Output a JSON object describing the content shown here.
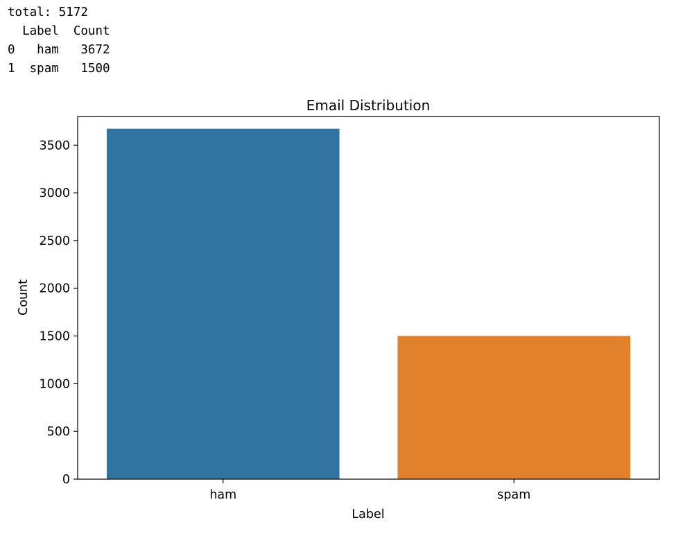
{
  "console": {
    "total_line": "total: 5172",
    "table": {
      "columns": [
        "Label",
        "Count"
      ],
      "rows": [
        {
          "index": "0",
          "label": "ham",
          "count": "3672"
        },
        {
          "index": "1",
          "label": "spam",
          "count": "1500"
        }
      ]
    }
  },
  "chart_data": {
    "type": "bar",
    "title": "Email Distribution",
    "xlabel": "Label",
    "ylabel": "Count",
    "categories": [
      "ham",
      "spam"
    ],
    "values": [
      3672,
      1500
    ],
    "colors": [
      "#3274a1",
      "#e1812c"
    ],
    "ylim": [
      0,
      3800
    ],
    "yticks": [
      0,
      500,
      1000,
      1500,
      2000,
      2500,
      3000,
      3500
    ],
    "grid": false
  }
}
